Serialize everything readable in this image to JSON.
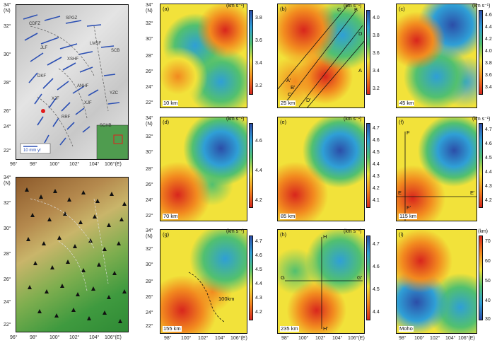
{
  "figure": {
    "top_left": {
      "lat_labels": [
        "34°",
        "(N)",
        "32°",
        "30°",
        "28°",
        "26°",
        "24°",
        "22°"
      ],
      "lon_labels": [
        "96°",
        "98°",
        "100°",
        "102°",
        "104°",
        "106°(E)"
      ],
      "blocks": [
        "SPGZ",
        "SCB",
        "YZC",
        "SCHB",
        "CDFZ",
        "JLF",
        "LMSF",
        "XSHF",
        "ANHF",
        "XJF",
        "RRF",
        "XJF",
        "DKF"
      ],
      "scale": "10 mm yr"
    },
    "bottom_left": {
      "lat_labels": [
        "34°",
        "(N)",
        "32°",
        "30°",
        "28°",
        "26°",
        "24°",
        "22°"
      ],
      "lon_labels": [
        "96°",
        "98°",
        "100°",
        "102°",
        "104°",
        "106°(E)"
      ]
    },
    "panels": [
      {
        "id": "a",
        "label": "(a)",
        "depth": "10 km",
        "unit": "(km s⁻¹)",
        "ticks": [
          "3.8",
          "3.6",
          "3.4",
          "3.2"
        ],
        "lat_labels": [
          "34°",
          "(N)",
          "32°",
          "30°",
          "28°",
          "26°",
          "24°",
          "22°"
        ]
      },
      {
        "id": "b",
        "label": "(b)",
        "depth": "25 km",
        "unit": "(km s⁻¹)",
        "ticks": [
          "4.0",
          "3.8",
          "3.6",
          "3.4",
          "3.2"
        ],
        "profile_labels": [
          "C",
          "B",
          "D",
          "A",
          "A'",
          "B'",
          "C'",
          "D'"
        ]
      },
      {
        "id": "c",
        "label": "(c)",
        "depth": "45 km",
        "unit": "(km s⁻¹)",
        "ticks": [
          "4.6",
          "4.4",
          "4.2",
          "4.0",
          "3.8",
          "3.6",
          "3.4"
        ]
      },
      {
        "id": "d",
        "label": "(d)",
        "depth": "70 km",
        "unit": "(km s⁻¹)",
        "ticks": [
          "4.6",
          "4.4",
          "4.2"
        ],
        "lat_labels": [
          "34°",
          "(N)",
          "32°",
          "30°",
          "28°",
          "26°",
          "24°",
          "22°"
        ]
      },
      {
        "id": "e",
        "label": "(e)",
        "depth": "85 km",
        "unit": "(km s⁻¹)",
        "ticks": [
          "4.7",
          "4.6",
          "4.5",
          "4.4",
          "4.3",
          "4.2",
          "4.1"
        ]
      },
      {
        "id": "f",
        "label": "(f)",
        "depth": "115 km",
        "unit": "(km s⁻¹)",
        "ticks": [
          "4.7",
          "4.6",
          "4.5",
          "4.4",
          "4.3",
          "4.2"
        ],
        "profile_labels": [
          "F",
          "F'",
          "E",
          "E'"
        ]
      },
      {
        "id": "g",
        "label": "(g)",
        "depth": "155 km",
        "unit": "(km s⁻¹)",
        "ticks": [
          "4.7",
          "4.6",
          "4.5",
          "4.4",
          "4.3",
          "4.2"
        ],
        "lat_labels": [
          "34°",
          "(N)",
          "32°",
          "30°",
          "28°",
          "26°",
          "24°",
          "22°"
        ],
        "lon_labels": [
          "98°",
          "100°",
          "102°",
          "104°",
          "106°(E)"
        ],
        "annotation": "100km"
      },
      {
        "id": "h",
        "label": "(h)",
        "depth": "235 km",
        "unit": "(km s⁻¹)",
        "ticks": [
          "4.7",
          "4.6",
          "4.5",
          "4.4"
        ],
        "lon_labels": [
          "98°",
          "100°",
          "102°",
          "104°",
          "106°(E)"
        ],
        "profile_labels": [
          "H",
          "H'",
          "G",
          "G'"
        ]
      },
      {
        "id": "i",
        "label": "(i)",
        "depth": "Moho",
        "unit": "(km)",
        "ticks": [
          "70",
          "60",
          "50",
          "40",
          "30"
        ],
        "lon_labels": [
          "98°",
          "100°",
          "102°",
          "104°",
          "106°(E)"
        ]
      }
    ]
  }
}
